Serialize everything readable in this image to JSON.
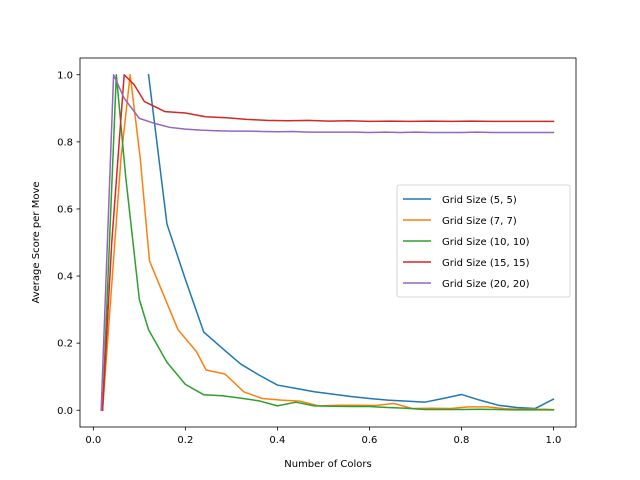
{
  "chart_data": {
    "type": "line",
    "xlabel": "Number of Colors",
    "ylabel": "Average Score per Move",
    "xlim": [
      -0.029,
      1.049
    ],
    "ylim": [
      -0.05,
      1.05
    ],
    "xticks": [
      0.0,
      0.2,
      0.4,
      0.6,
      0.8,
      1.0
    ],
    "xtick_labels": [
      "0.0",
      "0.2",
      "0.4",
      "0.6",
      "0.8",
      "1.0"
    ],
    "yticks": [
      0.0,
      0.2,
      0.4,
      0.6,
      0.8,
      1.0
    ],
    "ytick_labels": [
      "0.0",
      "0.2",
      "0.4",
      "0.6",
      "0.8",
      "1.0"
    ],
    "grid": false,
    "legend_position": "center-right",
    "series": [
      {
        "name": "Grid Size (5, 5)",
        "color": "#1f77b4",
        "x": [
          0.12,
          0.16,
          0.2,
          0.24,
          0.28,
          0.32,
          0.36,
          0.4,
          0.44,
          0.48,
          0.52,
          0.56,
          0.6,
          0.64,
          0.68,
          0.72,
          0.76,
          0.8,
          0.84,
          0.88,
          0.92,
          0.96,
          1.0
        ],
        "y": [
          1.0,
          0.555,
          0.39,
          0.233,
          0.185,
          0.138,
          0.105,
          0.075,
          0.065,
          0.055,
          0.048,
          0.041,
          0.035,
          0.03,
          0.027,
          0.024,
          0.035,
          0.047,
          0.03,
          0.015,
          0.008,
          0.005,
          0.033
        ]
      },
      {
        "name": "Grid Size (7, 7)",
        "color": "#ff7f0e",
        "x": [
          0.02,
          0.06,
          0.08,
          0.102,
          0.122,
          0.184,
          0.224,
          0.245,
          0.286,
          0.327,
          0.367,
          0.408,
          0.449,
          0.49,
          0.531,
          0.571,
          0.612,
          0.653,
          0.694,
          0.735,
          0.776,
          0.816,
          0.857,
          0.898,
          0.939,
          0.98,
          1.0
        ],
        "y": [
          0.0,
          0.75,
          1.0,
          0.75,
          0.445,
          0.24,
          0.175,
          0.12,
          0.108,
          0.055,
          0.035,
          0.03,
          0.027,
          0.013,
          0.015,
          0.015,
          0.014,
          0.02,
          0.005,
          0.006,
          0.005,
          0.01,
          0.01,
          0.004,
          0.003,
          0.003,
          0.002
        ]
      },
      {
        "name": "Grid Size (10, 10)",
        "color": "#2ca02c",
        "x": [
          0.02,
          0.05,
          0.07,
          0.1,
          0.12,
          0.16,
          0.2,
          0.24,
          0.28,
          0.32,
          0.36,
          0.4,
          0.44,
          0.48,
          0.52,
          0.56,
          0.6,
          0.64,
          0.68,
          0.72,
          0.76,
          0.8,
          0.84,
          0.88,
          0.92,
          0.96,
          1.0
        ],
        "y": [
          0.0,
          1.0,
          0.7,
          0.33,
          0.24,
          0.143,
          0.077,
          0.046,
          0.043,
          0.036,
          0.028,
          0.013,
          0.024,
          0.013,
          0.012,
          0.011,
          0.011,
          0.008,
          0.006,
          0.002,
          0.002,
          0.002,
          0.003,
          0.002,
          0.001,
          0.001,
          0.001
        ]
      },
      {
        "name": "Grid Size (15, 15)",
        "color": "#d62728",
        "x": [
          0.02,
          0.04,
          0.067,
          0.089,
          0.111,
          0.156,
          0.2,
          0.244,
          0.289,
          0.333,
          0.378,
          0.422,
          0.467,
          0.511,
          0.556,
          0.6,
          0.644,
          0.689,
          0.733,
          0.778,
          0.822,
          0.867,
          0.911,
          0.956,
          1.0
        ],
        "y": [
          0.0,
          0.5,
          1.0,
          0.97,
          0.92,
          0.89,
          0.886,
          0.875,
          0.872,
          0.867,
          0.864,
          0.863,
          0.864,
          0.862,
          0.863,
          0.861,
          0.862,
          0.861,
          0.862,
          0.861,
          0.862,
          0.861,
          0.861,
          0.861,
          0.861
        ]
      },
      {
        "name": "Grid Size (20, 20)",
        "color": "#9467bd",
        "x": [
          0.017,
          0.044,
          0.067,
          0.1,
          0.133,
          0.167,
          0.2,
          0.233,
          0.267,
          0.3,
          0.333,
          0.367,
          0.4,
          0.433,
          0.467,
          0.5,
          0.533,
          0.567,
          0.6,
          0.633,
          0.667,
          0.7,
          0.733,
          0.767,
          0.8,
          0.833,
          0.867,
          0.9,
          0.933,
          0.967,
          1.0
        ],
        "y": [
          0.0,
          1.0,
          0.93,
          0.87,
          0.855,
          0.843,
          0.838,
          0.835,
          0.833,
          0.832,
          0.832,
          0.831,
          0.83,
          0.831,
          0.829,
          0.829,
          0.829,
          0.829,
          0.828,
          0.829,
          0.828,
          0.829,
          0.828,
          0.828,
          0.828,
          0.829,
          0.828,
          0.828,
          0.828,
          0.828,
          0.828
        ]
      }
    ]
  }
}
